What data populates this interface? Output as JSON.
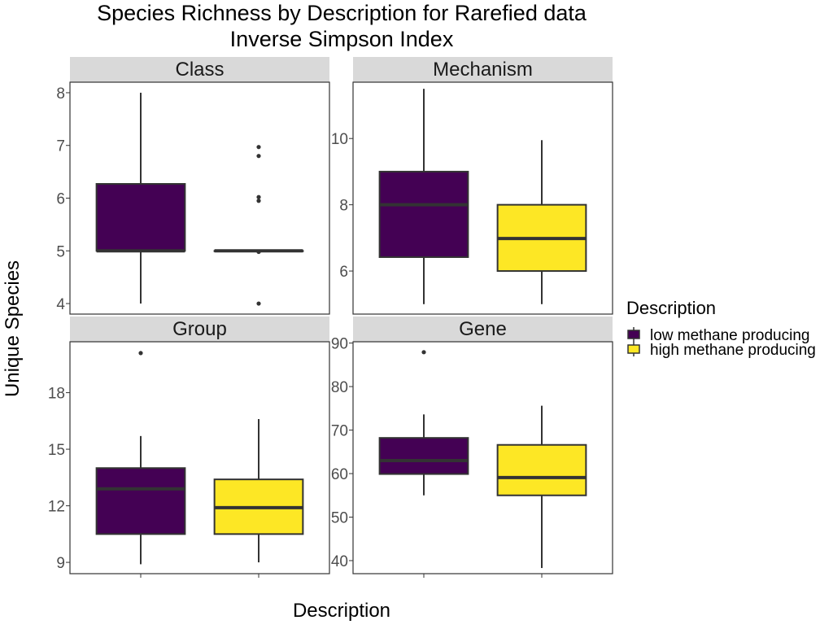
{
  "title_line1": "Species Richness by Description for Rarefied data",
  "title_line2": "Inverse Simpson Index",
  "xlabel": "Description",
  "ylabel": "Unique Species",
  "legend": {
    "title": "Description",
    "position": "right",
    "items": [
      {
        "label": "low methane producing",
        "color": "#440154"
      },
      {
        "label": "high methane producing",
        "color": "#FDE725"
      }
    ]
  },
  "chart_data": [
    {
      "type": "boxplot",
      "panel": "Class",
      "yticks": [
        4,
        5,
        6,
        7,
        8
      ],
      "ylim": [
        3.8,
        8.2
      ],
      "boxes": [
        {
          "group": "low methane producing",
          "whisker_low": 4,
          "q1": 5,
          "median": 5,
          "q3": 6.27,
          "whisker_high": 8,
          "outliers": []
        },
        {
          "group": "high methane producing",
          "whisker_low": 5,
          "q1": 5,
          "median": 5,
          "q3": 5,
          "whisker_high": 5,
          "outliers": [
            4,
            4.98,
            5.95,
            6.02,
            6.8,
            6.97
          ]
        }
      ]
    },
    {
      "type": "boxplot",
      "panel": "Mechanism",
      "yticks": [
        6,
        8,
        10
      ],
      "ylim": [
        4.7,
        11.7
      ],
      "boxes": [
        {
          "group": "low methane producing",
          "whisker_low": 5,
          "q1": 6.42,
          "median": 8,
          "q3": 9,
          "whisker_high": 11.5,
          "outliers": []
        },
        {
          "group": "high methane producing",
          "whisker_low": 5,
          "q1": 6,
          "median": 6.98,
          "q3": 8,
          "whisker_high": 9.95,
          "outliers": []
        }
      ]
    },
    {
      "type": "boxplot",
      "panel": "Group",
      "yticks": [
        9,
        12,
        15,
        18
      ],
      "ylim": [
        8.4,
        20.7
      ],
      "boxes": [
        {
          "group": "low methane producing",
          "whisker_low": 8.9,
          "q1": 10.5,
          "median": 12.9,
          "q3": 14,
          "whisker_high": 15.7,
          "outliers": [
            20.1
          ]
        },
        {
          "group": "high methane producing",
          "whisker_low": 9,
          "q1": 10.5,
          "median": 11.9,
          "q3": 13.4,
          "whisker_high": 16.6,
          "outliers": []
        }
      ]
    },
    {
      "type": "boxplot",
      "panel": "Gene",
      "yticks": [
        40,
        50,
        60,
        70,
        80,
        90
      ],
      "ylim": [
        37,
        90.3
      ],
      "boxes": [
        {
          "group": "low methane producing",
          "whisker_low": 55,
          "q1": 59.9,
          "median": 63,
          "q3": 68.2,
          "whisker_high": 73.6,
          "outliers": [
            87.9
          ]
        },
        {
          "group": "high methane producing",
          "whisker_low": 38.3,
          "q1": 55,
          "median": 59.1,
          "q3": 66.6,
          "whisker_high": 75.6,
          "outliers": []
        }
      ]
    }
  ]
}
